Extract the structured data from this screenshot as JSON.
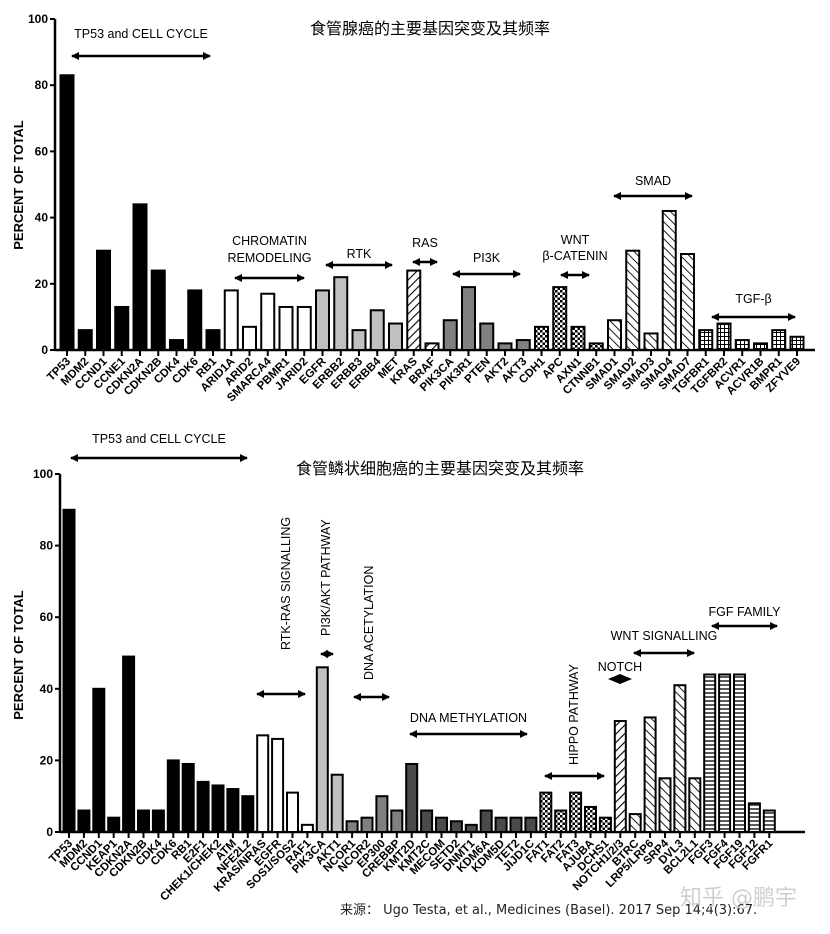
{
  "chart_data": [
    {
      "type": "bar",
      "title": "食管腺癌的主要基因突变及其频率",
      "xlabel": "",
      "ylabel": "PERCENT OF TOTAL",
      "ylim": [
        0,
        100
      ],
      "yticks": [
        0,
        20,
        40,
        60,
        80,
        100
      ],
      "grid": false,
      "categories": [
        "TP53",
        "MDM2",
        "CCND1",
        "CCNE1",
        "CDKN2A",
        "CDKN2B",
        "CDK4",
        "CDK6",
        "RB1",
        "ARID1A",
        "ARID2",
        "SMARCA4",
        "PBMR1",
        "JARID2",
        "EGFR",
        "ERBB2",
        "ERBB3",
        "ERBB4",
        "MET",
        "KRAS",
        "BRAF",
        "PIK3CA",
        "PIK3R1",
        "PTEN",
        "AKT2",
        "AKT3",
        "CDH1",
        "APC",
        "AXN1",
        "CTNNB1",
        "SMAD1",
        "SMAD2",
        "SMAD3",
        "SMAD4",
        "SMAD7",
        "TGFBR1",
        "TGFBR2",
        "ACVR1",
        "ACVR1B",
        "BMPR1",
        "ZFYVE9"
      ],
      "values": [
        83,
        6,
        30,
        13,
        44,
        24,
        3,
        18,
        6,
        18,
        7,
        17,
        13,
        13,
        18,
        22,
        6,
        12,
        8,
        24,
        2,
        9,
        19,
        8,
        2,
        3,
        7,
        19,
        7,
        2,
        9,
        30,
        5,
        42,
        29,
        6,
        8,
        3,
        2,
        6,
        4
      ],
      "groups": [
        {
          "label": "TP53 and CELL CYCLE",
          "start": 0,
          "end": 8,
          "fill": "black"
        },
        {
          "label": "CHROMATIN\nREMODELING",
          "start": 9,
          "end": 13,
          "fill": "white"
        },
        {
          "label": "RTK",
          "start": 14,
          "end": 18,
          "fill": "lightgray"
        },
        {
          "label": "RAS",
          "start": 19,
          "end": 20,
          "fill": "diag-hatch"
        },
        {
          "label": "PI3K",
          "start": 21,
          "end": 25,
          "fill": "gray"
        },
        {
          "label": "WNT\nβ-CATENIN",
          "start": 26,
          "end": 29,
          "fill": "checker"
        },
        {
          "label": "SMAD",
          "start": 30,
          "end": 34,
          "fill": "back-hatch"
        },
        {
          "label": "TGF-β",
          "start": 35,
          "end": 40,
          "fill": "grid"
        }
      ]
    },
    {
      "type": "bar",
      "title": "食管鳞状细胞癌的主要基因突变及其频率",
      "xlabel": "",
      "ylabel": "PERCENT OF TOTAL",
      "ylim": [
        0,
        100
      ],
      "yticks": [
        0,
        20,
        40,
        60,
        80,
        100
      ],
      "grid": false,
      "categories": [
        "TP53",
        "MDM2",
        "CCND1",
        "KEAP1",
        "CDKN2A",
        "CDKN2B",
        "CDK4",
        "CDK6",
        "RB1",
        "E2F1",
        "CHEK1/CHEK2",
        "ATM",
        "NFE2L2",
        "KRAS/NRAS",
        "EGFR",
        "SOS1/SOS2",
        "RAF1",
        "PIK3CA",
        "AKT1",
        "NCOR1",
        "NCOR2",
        "EP300",
        "CREBBP",
        "KMT2D",
        "KMT2C",
        "MECOM",
        "SETD2",
        "DNMT1",
        "KDM6A",
        "KDM5D",
        "TET2",
        "JIJD1C",
        "FAT1",
        "FAT2",
        "FAT3",
        "AJUBA",
        "DCHS1",
        "NOTCH1/2/3",
        "BTRC",
        "LRP5/LRP6",
        "SRP4",
        "DVL3",
        "BCL2L1",
        "FGF3",
        "FGF4",
        "FGF19",
        "FGF12",
        "FGFR1"
      ],
      "values": [
        90,
        6,
        40,
        4,
        49,
        6,
        6,
        20,
        19,
        14,
        13,
        12,
        10,
        27,
        26,
        11,
        2,
        46,
        16,
        3,
        4,
        10,
        6,
        19,
        6,
        4,
        3,
        2,
        6,
        4,
        4,
        4,
        11,
        6,
        11,
        7,
        4,
        31,
        5,
        32,
        15,
        41,
        15,
        44,
        44,
        44,
        8,
        6
      ],
      "groups": [
        {
          "label": "TP53 and CELL CYCLE",
          "start": 0,
          "end": 12,
          "fill": "black",
          "orientation": "horizontal"
        },
        {
          "label": "RTK-RAS SIGNALLING",
          "start": 13,
          "end": 16,
          "fill": "white",
          "orientation": "vertical"
        },
        {
          "label": "PI3K/AKT PATHWAY",
          "start": 17,
          "end": 18,
          "fill": "lightgray",
          "orientation": "vertical"
        },
        {
          "label": "DNA  ACETYLATION",
          "start": 19,
          "end": 22,
          "fill": "gray",
          "orientation": "vertical"
        },
        {
          "label": "DNA METHYLATION",
          "start": 23,
          "end": 31,
          "fill": "darkgray",
          "orientation": "horizontal"
        },
        {
          "label": "HIPPO PATHWAY",
          "start": 32,
          "end": 36,
          "fill": "checker",
          "orientation": "vertical"
        },
        {
          "label": "NOTCH",
          "start": 37,
          "end": 37,
          "fill": "diag-hatch",
          "orientation": "horizontal"
        },
        {
          "label": "WNT SIGNALLING",
          "start": 38,
          "end": 42,
          "fill": "back-hatch",
          "orientation": "horizontal"
        },
        {
          "label": "FGF FAMILY",
          "start": 43,
          "end": 47,
          "fill": "hlines",
          "orientation": "horizontal"
        }
      ]
    }
  ],
  "source_text": "来源：  Ugo Testa, et al., Medicines (Basel). 2017 Sep 14;4(3):67.",
  "watermark": "知乎 @鹏宇"
}
